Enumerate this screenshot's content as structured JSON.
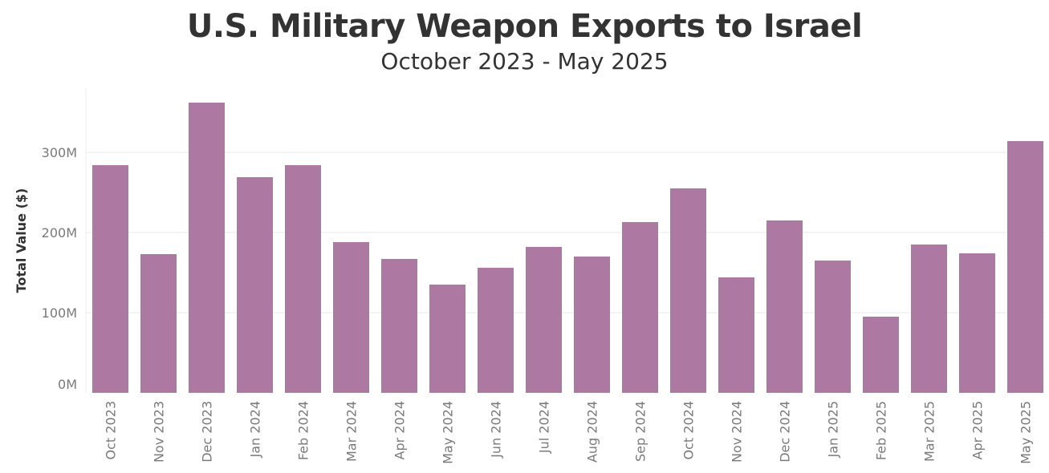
{
  "chart_data": {
    "type": "bar",
    "title": "U.S. Military Weapon Exports to Israel",
    "subtitle": "October 2023 - May 2025",
    "xlabel": "",
    "ylabel": "Total Value ($)",
    "ylim": [
      0,
      375
    ],
    "yticks": [
      0,
      100,
      200,
      300
    ],
    "ytick_labels": [
      "0M",
      "100M",
      "200M",
      "300M"
    ],
    "grid": true,
    "bar_color": "#ad79a2",
    "categories": [
      "Oct 2023",
      "Nov 2023",
      "Dec 2023",
      "Jan 2024",
      "Feb 2024",
      "Mar 2024",
      "Apr 2024",
      "May 2024",
      "Jun 2024",
      "Jul 2024",
      "Aug 2024",
      "Sep 2024",
      "Oct 2024",
      "Nov 2024",
      "Dec 2024",
      "Jan 2025",
      "Feb 2025",
      "Mar 2025",
      "Apr 2025",
      "May 2025"
    ],
    "values": [
      284,
      173,
      362,
      269,
      284,
      188,
      167,
      135,
      156,
      182,
      170,
      213,
      255,
      144,
      215,
      165,
      95,
      185,
      174,
      314
    ]
  }
}
